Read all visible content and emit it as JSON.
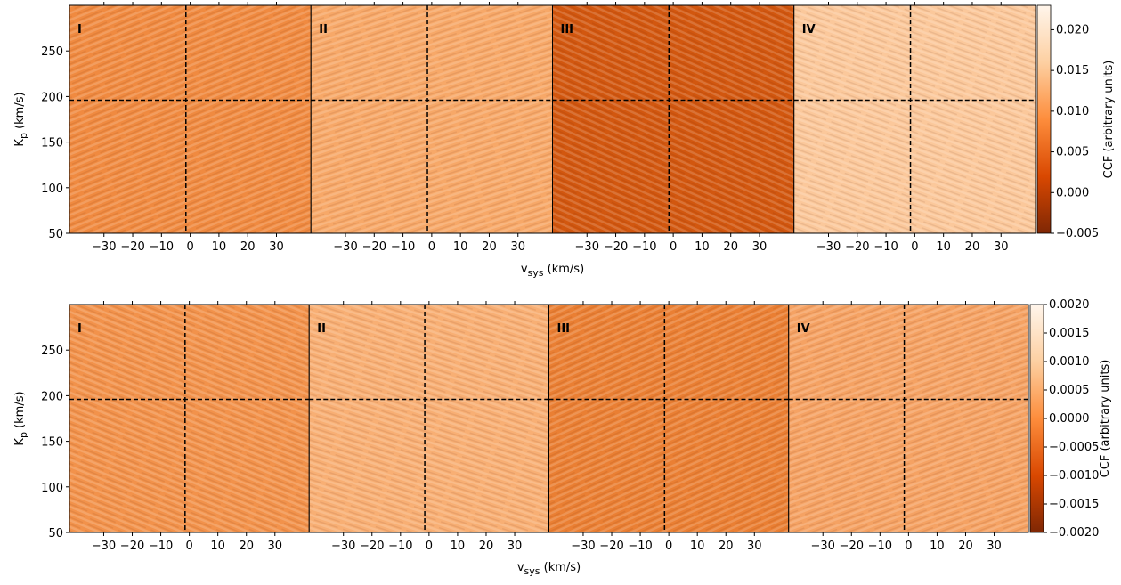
{
  "chart_data": [
    {
      "type": "heatmap",
      "panels": [
        "I",
        "II",
        "III",
        "IV"
      ],
      "panel_colors": [
        "#f08a40",
        "#f7a868",
        "#d2570f",
        "#fbc89b"
      ],
      "xlabel": [
        "v",
        "sys",
        " (km/s)"
      ],
      "ylabel": [
        "K",
        "p",
        " (km/s)"
      ],
      "xlim": [
        -42,
        42
      ],
      "xticks": [
        {
          "value": -30,
          "label": "−30"
        },
        {
          "value": -20,
          "label": "−20"
        },
        {
          "value": -10,
          "label": "−10"
        },
        0,
        10,
        20,
        30
      ],
      "ylim": [
        50,
        300
      ],
      "yticks": [
        50,
        100,
        150,
        200,
        250
      ],
      "vline": -1.5,
      "hline": 196,
      "colormap": [
        "#7f2704",
        "#d94801",
        "#fd8d3c",
        "#fdd0a2",
        "#fff5eb"
      ],
      "colorbar_label": "CCF (arbitrary units)",
      "clim": [
        -0.005,
        0.023
      ],
      "cticks": [
        {
          "value": -0.005,
          "label": "−0.005"
        },
        {
          "value": 0,
          "label": "0.000"
        },
        {
          "value": 0.005,
          "label": "0.005"
        },
        {
          "value": 0.01,
          "label": "0.010"
        },
        {
          "value": 0.015,
          "label": "0.015"
        },
        {
          "value": 0.02,
          "label": "0.020"
        }
      ]
    },
    {
      "type": "heatmap",
      "panels": [
        "I",
        "II",
        "III",
        "IV"
      ],
      "panel_colors": [
        "#f2924b",
        "#f8af74",
        "#ea7f33",
        "#f5a263"
      ],
      "xlabel": [
        "v",
        "sys",
        " (km/s)"
      ],
      "ylabel": [
        "K",
        "p",
        " (km/s)"
      ],
      "xlim": [
        -42,
        42
      ],
      "xticks": [
        {
          "value": -30,
          "label": "−30"
        },
        {
          "value": -20,
          "label": "−20"
        },
        {
          "value": -10,
          "label": "−10"
        },
        0,
        10,
        20,
        30
      ],
      "ylim": [
        50,
        300
      ],
      "yticks": [
        50,
        100,
        150,
        200,
        250
      ],
      "vline": -1.5,
      "hline": 196,
      "colormap": [
        "#7f2704",
        "#d94801",
        "#fd8d3c",
        "#fdd0a2",
        "#fff5eb"
      ],
      "colorbar_label": "CCF (arbitrary units)",
      "clim": [
        -0.002,
        0.002
      ],
      "cticks": [
        {
          "value": -0.002,
          "label": "−0.0020"
        },
        {
          "value": -0.0015,
          "label": "−0.0015"
        },
        {
          "value": -0.001,
          "label": "−0.0010"
        },
        {
          "value": -0.0005,
          "label": "−0.0005"
        },
        {
          "value": 0,
          "label": "0.0000"
        },
        {
          "value": 0.0005,
          "label": "0.0005"
        },
        {
          "value": 0.001,
          "label": "0.0010"
        },
        {
          "value": 0.0015,
          "label": "0.0015"
        },
        {
          "value": 0.002,
          "label": "0.0020"
        }
      ]
    }
  ]
}
